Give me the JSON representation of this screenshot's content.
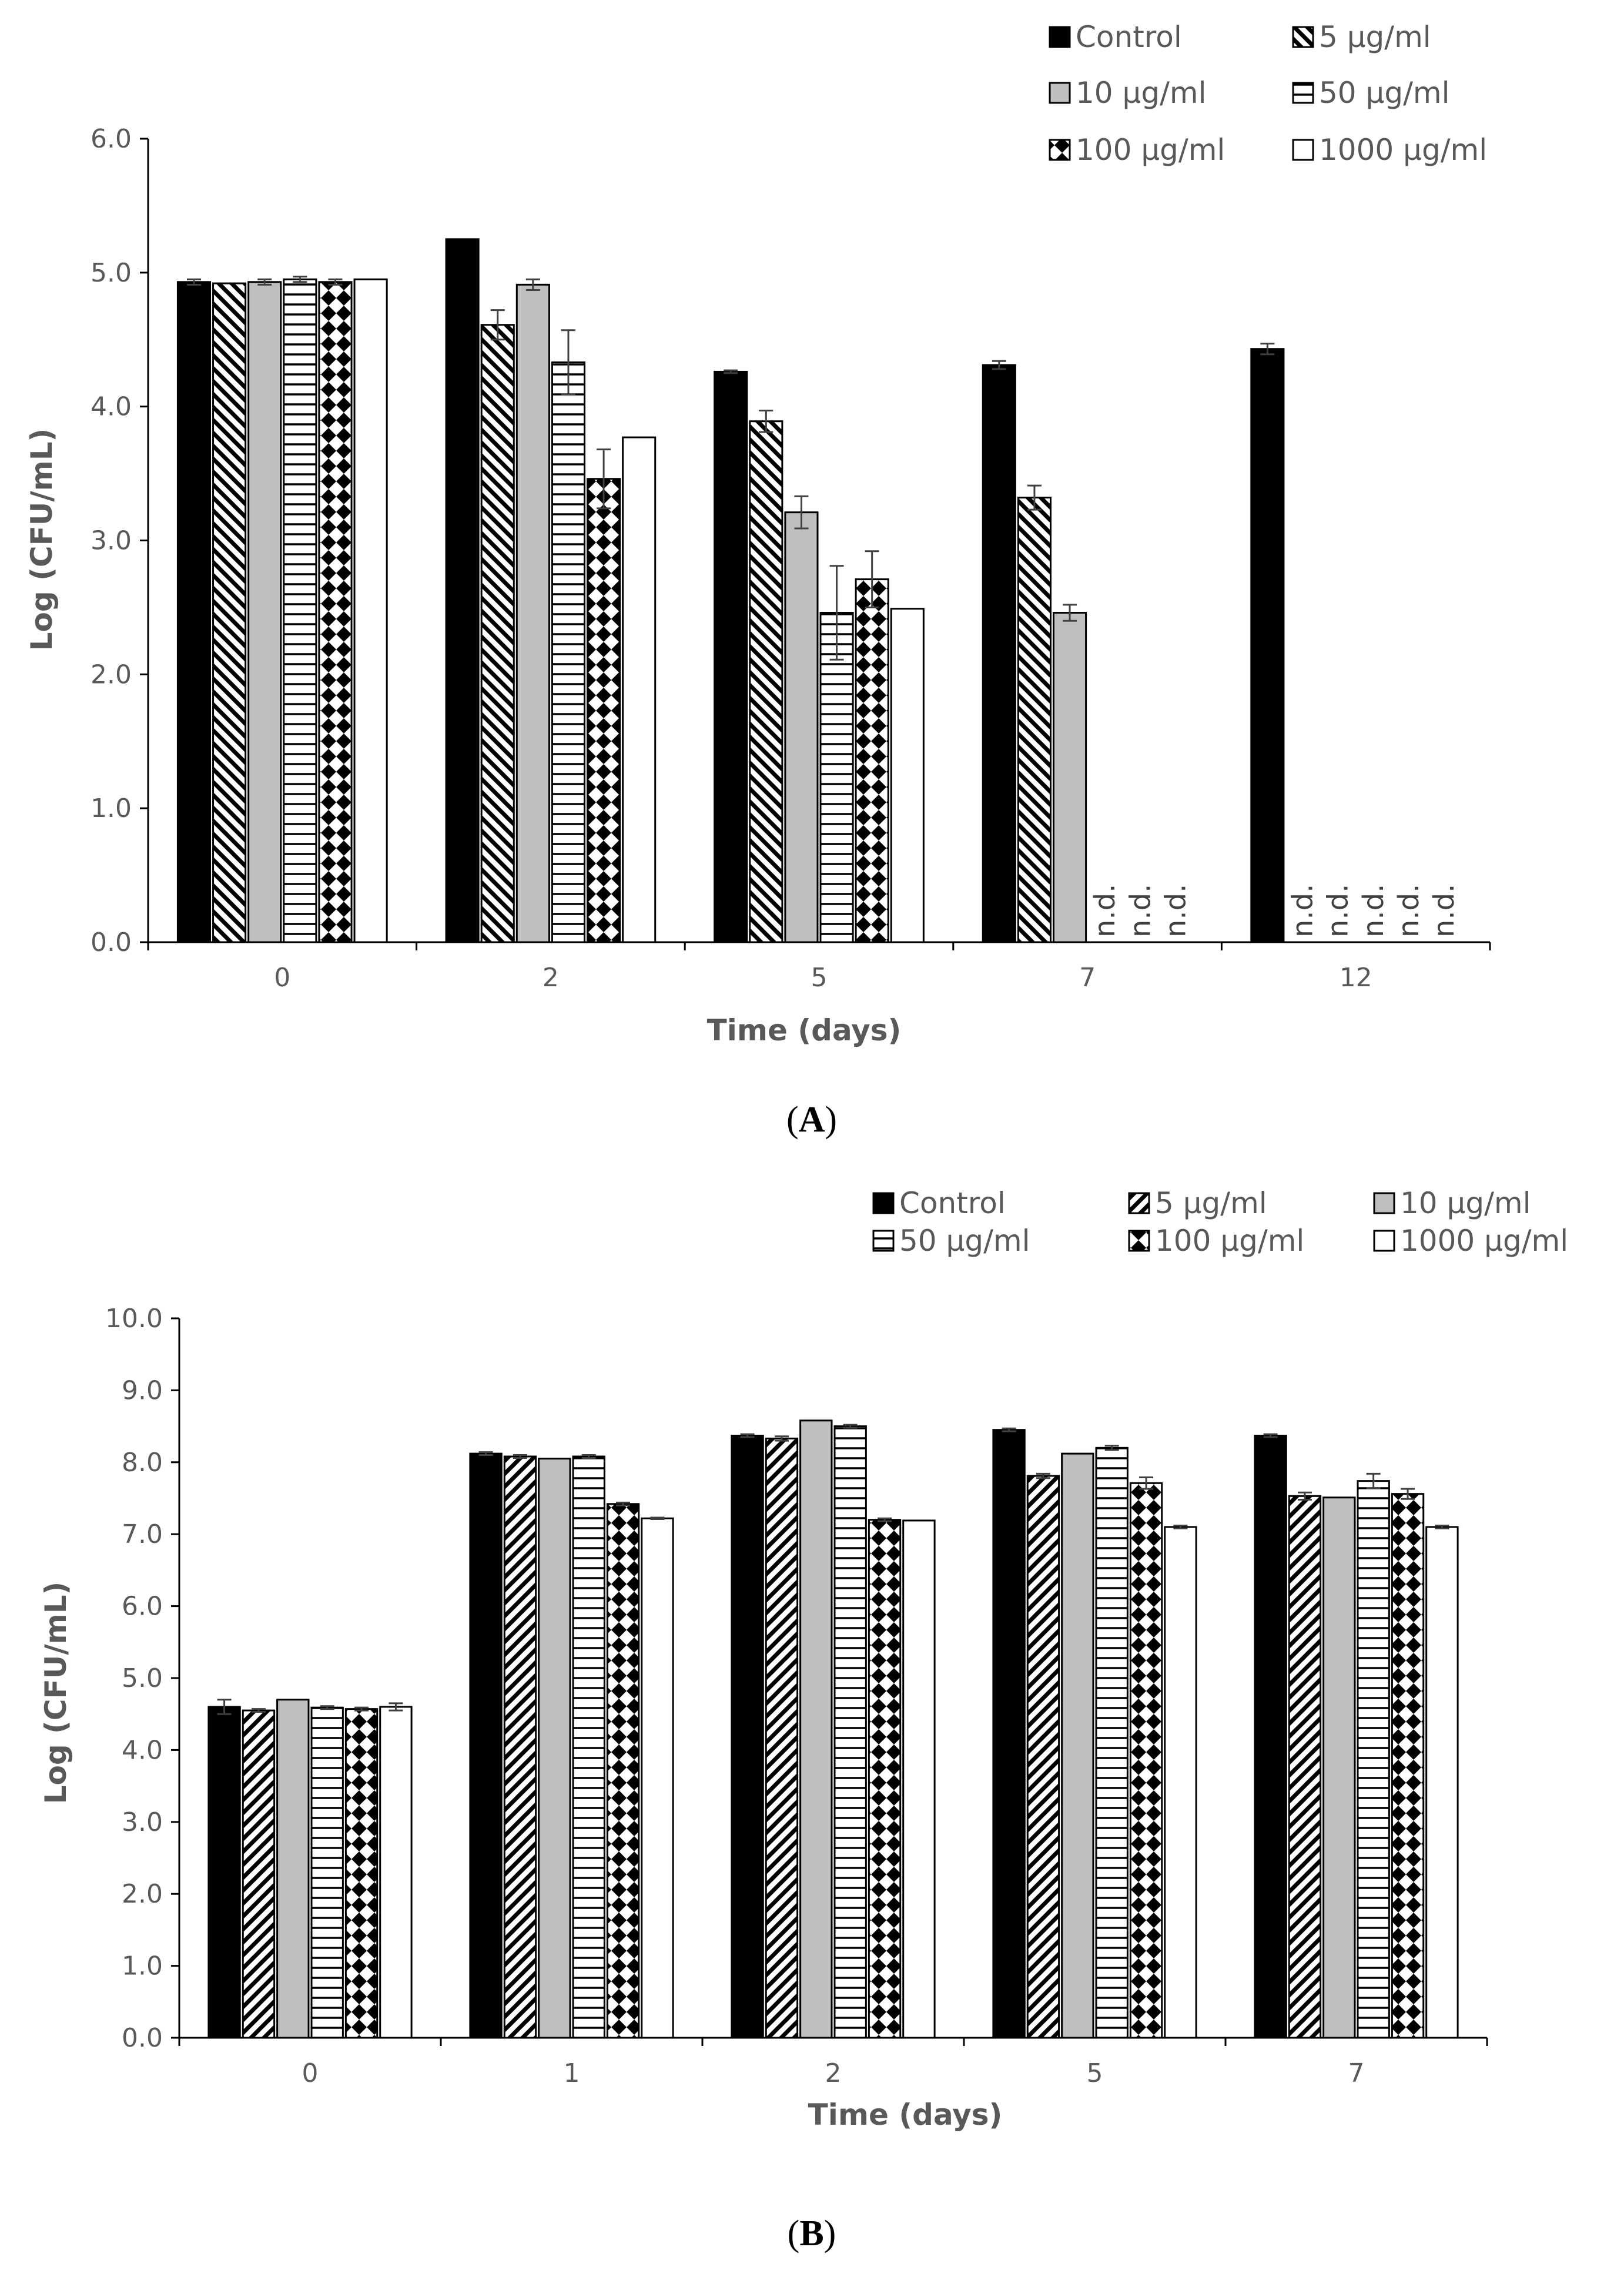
{
  "panels": [
    {
      "label_open": "(",
      "label_letter": "A",
      "label_close": ")"
    },
    {
      "label_open": "(",
      "label_letter": "B",
      "label_close": ")"
    }
  ],
  "chart_data": [
    {
      "type": "bar",
      "panel": "A",
      "xlabel": "Time (days)",
      "ylabel": "Log",
      "ylabel_suffix": "(CFU/mL)",
      "ylim": [
        0,
        6
      ],
      "yticks": [
        "0.0",
        "1.0",
        "2.0",
        "3.0",
        "4.0",
        "5.0",
        "6.0"
      ],
      "grid": false,
      "legend_position": "top-right",
      "categories": [
        "0",
        "2",
        "5",
        "7",
        "12"
      ],
      "not_detected_label": "n.d.",
      "series": [
        {
          "name": "Control",
          "pattern": "solid-black",
          "values": [
            4.93,
            5.25,
            4.26,
            4.31,
            4.43
          ],
          "errors": [
            0.02,
            0.0,
            0.01,
            0.03,
            0.04
          ]
        },
        {
          "name": "5 μg/ml",
          "pattern": "diag-down",
          "values": [
            4.92,
            4.61,
            3.89,
            3.32,
            null
          ],
          "errors": [
            0.0,
            0.11,
            0.08,
            0.09,
            null
          ]
        },
        {
          "name": "10 μg/ml",
          "pattern": "gray",
          "values": [
            4.93,
            4.91,
            3.21,
            2.46,
            null
          ],
          "errors": [
            0.02,
            0.04,
            0.12,
            0.06,
            null
          ]
        },
        {
          "name": "50 μg/ml",
          "pattern": "horizontal",
          "values": [
            4.95,
            4.33,
            2.46,
            null,
            null
          ],
          "errors": [
            0.02,
            0.24,
            0.35,
            null,
            null
          ]
        },
        {
          "name": "100 μg/ml",
          "pattern": "diamond",
          "values": [
            4.93,
            3.46,
            2.71,
            null,
            null
          ],
          "errors": [
            0.02,
            0.22,
            0.21,
            null,
            null
          ]
        },
        {
          "name": "1000 μg/ml",
          "pattern": "white",
          "values": [
            4.95,
            3.77,
            2.49,
            null,
            null
          ],
          "errors": [
            0.0,
            0.0,
            0.0,
            null,
            null
          ]
        }
      ]
    },
    {
      "type": "bar",
      "panel": "B",
      "xlabel": "Time (days)",
      "ylabel": "Log",
      "ylabel_suffix": "(CFU/mL)",
      "ylim": [
        0,
        10
      ],
      "yticks": [
        "0.0",
        "1.0",
        "2.0",
        "3.0",
        "4.0",
        "5.0",
        "6.0",
        "7.0",
        "8.0",
        "9.0",
        "10.0"
      ],
      "grid": false,
      "legend_position": "top-right",
      "categories": [
        "0",
        "1",
        "2",
        "5",
        "7"
      ],
      "series": [
        {
          "name": "Control",
          "pattern": "solid-black",
          "values": [
            4.6,
            8.12,
            8.37,
            8.45,
            8.37
          ],
          "errors": [
            0.1,
            0.02,
            0.02,
            0.02,
            0.02
          ]
        },
        {
          "name": "5 μg/ml",
          "pattern": "diag-up",
          "values": [
            4.55,
            8.08,
            8.33,
            7.81,
            7.53
          ],
          "errors": [
            0.02,
            0.02,
            0.03,
            0.03,
            0.05
          ]
        },
        {
          "name": "10 μg/ml",
          "pattern": "gray",
          "values": [
            4.7,
            8.05,
            8.58,
            8.12,
            7.51
          ],
          "errors": [
            0.0,
            0.0,
            0.0,
            0.0,
            0.0
          ]
        },
        {
          "name": "50 μg/ml",
          "pattern": "horizontal",
          "values": [
            4.59,
            8.08,
            8.5,
            8.2,
            7.74
          ],
          "errors": [
            0.02,
            0.02,
            0.02,
            0.03,
            0.1
          ]
        },
        {
          "name": "100 μg/ml",
          "pattern": "diamond",
          "values": [
            4.57,
            7.42,
            7.2,
            7.71,
            7.56
          ],
          "errors": [
            0.02,
            0.02,
            0.02,
            0.08,
            0.07
          ]
        },
        {
          "name": "1000 μg/ml",
          "pattern": "white",
          "values": [
            4.6,
            7.22,
            7.19,
            7.1,
            7.1
          ],
          "errors": [
            0.05,
            0.01,
            0.0,
            0.02,
            0.02
          ]
        }
      ]
    }
  ]
}
